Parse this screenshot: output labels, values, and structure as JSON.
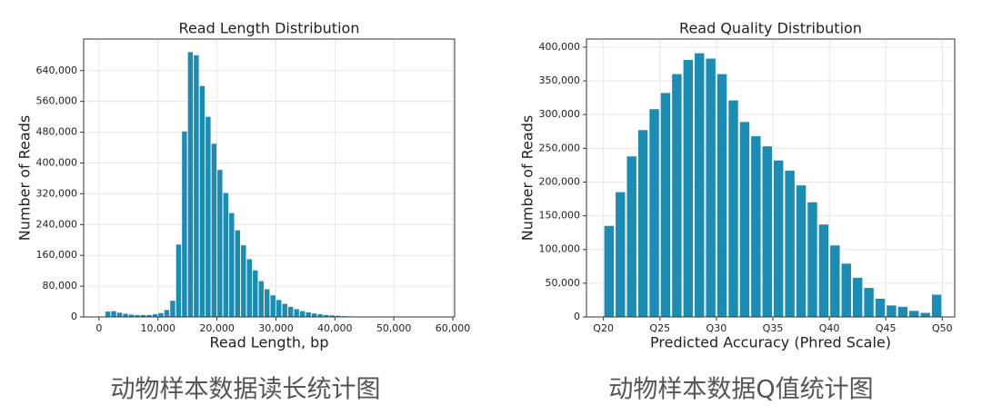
{
  "chart_data": [
    {
      "type": "histogram",
      "title": "Read Length Distribution",
      "xlabel": "Read Length, bp",
      "ylabel": "Number of Reads",
      "caption": "动物样本数据读长统计图",
      "color": "#1b8db5",
      "grid": true,
      "bins": [
        1000,
        2000,
        3000,
        4000,
        5000,
        6000,
        7000,
        8000,
        9000,
        10000,
        11000,
        12000,
        13000,
        14000,
        15000,
        16000,
        17000,
        18000,
        19000,
        20000,
        21000,
        22000,
        23000,
        24000,
        25000,
        26000,
        27000,
        28000,
        29000,
        30000,
        31000,
        32000,
        33000,
        34000,
        35000,
        36000,
        37000,
        38000,
        39000,
        40000,
        41000,
        42000,
        43000,
        44000,
        45000,
        46000,
        47000,
        48000,
        49000,
        50000
      ],
      "values": [
        14000,
        15000,
        11000,
        8000,
        6000,
        5000,
        5000,
        5000,
        7000,
        10000,
        18000,
        42000,
        188000,
        482000,
        688000,
        680000,
        600000,
        520000,
        450000,
        382000,
        322000,
        270000,
        225000,
        186000,
        150000,
        121000,
        93000,
        72000,
        56000,
        44000,
        34000,
        26000,
        20000,
        15000,
        12000,
        9000,
        7000,
        5000,
        4000,
        3000,
        2000,
        1500,
        1000,
        800,
        600,
        500,
        400,
        300,
        300
      ],
      "xlim": [
        -2600,
        60300
      ],
      "xticks": [
        0,
        {
          "value": 10000,
          "label": "10,000"
        },
        {
          "value": 20000,
          "label": "20,000"
        },
        {
          "value": 30000,
          "label": "30,000"
        },
        {
          "value": 40000,
          "label": "40,000"
        },
        {
          "value": 50000,
          "label": "50,000"
        },
        {
          "value": 60000,
          "label": "60,000"
        }
      ],
      "ylim": [
        0,
        722000
      ],
      "yticks": [
        0,
        {
          "value": 80000,
          "label": "80,000"
        },
        {
          "value": 160000,
          "label": "160,000"
        },
        {
          "value": 240000,
          "label": "240,000"
        },
        {
          "value": 320000,
          "label": "320,000"
        },
        {
          "value": 400000,
          "label": "400,000"
        },
        {
          "value": 480000,
          "label": "480,000"
        },
        {
          "value": 560000,
          "label": "560,000"
        },
        {
          "value": 640000,
          "label": "640,000"
        }
      ]
    },
    {
      "type": "histogram",
      "title": "Read Quality Distribution",
      "xlabel": "Predicted Accuracy (Phred Scale)",
      "ylabel": "Number of Reads",
      "caption": "动物样本数据Q值统计图",
      "color": "#1b8db5",
      "grid": true,
      "bins": [
        20,
        21,
        22,
        23,
        24,
        25,
        26,
        27,
        28,
        29,
        30,
        31,
        32,
        33,
        34,
        35,
        36,
        37,
        38,
        39,
        40,
        41,
        42,
        43,
        44,
        45,
        46,
        47,
        48,
        49,
        50
      ],
      "values": [
        135000,
        185000,
        238000,
        277000,
        308000,
        332000,
        360000,
        381000,
        391000,
        383000,
        360000,
        321000,
        289000,
        268000,
        253000,
        232000,
        217000,
        195000,
        170000,
        137000,
        106000,
        79000,
        58000,
        43000,
        27000,
        17000,
        15000,
        9000,
        6000,
        33000
      ],
      "xlim": [
        18.5,
        51.1
      ],
      "xticks": [
        {
          "value": 20,
          "label": "Q20"
        },
        {
          "value": 25,
          "label": "Q25"
        },
        {
          "value": 30,
          "label": "Q30"
        },
        {
          "value": 35,
          "label": "Q35"
        },
        {
          "value": 40,
          "label": "Q40"
        },
        {
          "value": 45,
          "label": "Q45"
        },
        {
          "value": 50,
          "label": "Q50"
        }
      ],
      "ylim": [
        0,
        412000
      ],
      "yticks": [
        0,
        {
          "value": 50000,
          "label": "50,000"
        },
        {
          "value": 100000,
          "label": "100,000"
        },
        {
          "value": 150000,
          "label": "150,000"
        },
        {
          "value": 200000,
          "label": "200,000"
        },
        {
          "value": 250000,
          "label": "250,000"
        },
        {
          "value": 300000,
          "label": "300,000"
        },
        {
          "value": 350000,
          "label": "350,000"
        },
        {
          "value": 400000,
          "label": "400,000"
        }
      ]
    }
  ]
}
